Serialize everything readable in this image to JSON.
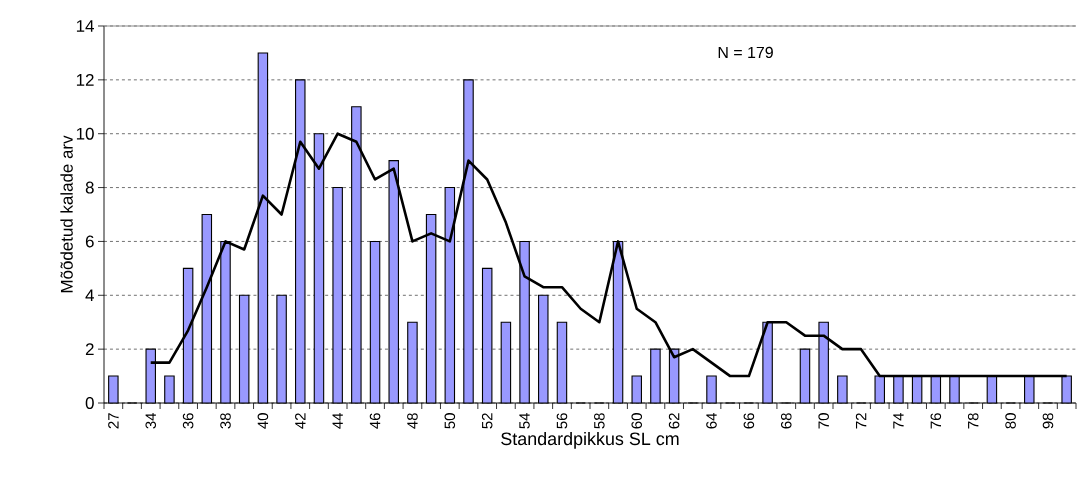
{
  "chart_data": {
    "type": "bar",
    "xlabel": "Standardpikkus SL cm",
    "ylabel": "Mõõdetud kalade arv",
    "annotations": [
      "N = 179"
    ],
    "categories": [
      "27",
      null,
      "34",
      null,
      "36",
      null,
      "38",
      null,
      "40",
      null,
      "42",
      null,
      "44",
      null,
      "46",
      null,
      "48",
      null,
      "50",
      null,
      "52",
      null,
      "54",
      null,
      "56",
      null,
      "58",
      null,
      "60",
      null,
      "62",
      null,
      "64",
      null,
      "66",
      null,
      "68",
      null,
      "70",
      null,
      "72",
      null,
      "74",
      null,
      "76",
      null,
      "78",
      null,
      "80",
      null,
      "98",
      null
    ],
    "series": [
      {
        "color": "#9999ff",
        "values": [
          1,
          0,
          2,
          1,
          5,
          7,
          6,
          4,
          13,
          4,
          12,
          10,
          8,
          11,
          6,
          9,
          3,
          7,
          8,
          12,
          5,
          3,
          6,
          4,
          3,
          0,
          0,
          6,
          1,
          2,
          2,
          0,
          1,
          0,
          0,
          3,
          0,
          2,
          3,
          1,
          0,
          1,
          1,
          1,
          1,
          1,
          0,
          1,
          0,
          1,
          0,
          1
        ]
      },
      {
        "type": "line",
        "color": "#000000",
        "marker": "none",
        "line_style": "solid",
        "values": [
          null,
          null,
          1.5,
          1.5,
          2.7,
          4.3,
          6,
          5.7,
          7.7,
          7,
          9.7,
          8.7,
          10,
          9.7,
          8.3,
          8.7,
          6,
          6.3,
          6,
          9,
          8.3,
          6.7,
          4.7,
          4.3,
          4.3,
          3.5,
          3,
          6,
          3.5,
          3,
          1.7,
          2,
          1.5,
          1,
          1,
          3,
          3,
          2.5,
          2.5,
          2,
          2,
          1,
          1,
          1,
          1,
          1,
          1,
          1,
          1,
          1,
          1,
          1
        ]
      }
    ],
    "ylim": [
      0,
      14
    ],
    "yticks": [
      0,
      2,
      4,
      6,
      8,
      10,
      12,
      14
    ],
    "grid": "y"
  }
}
